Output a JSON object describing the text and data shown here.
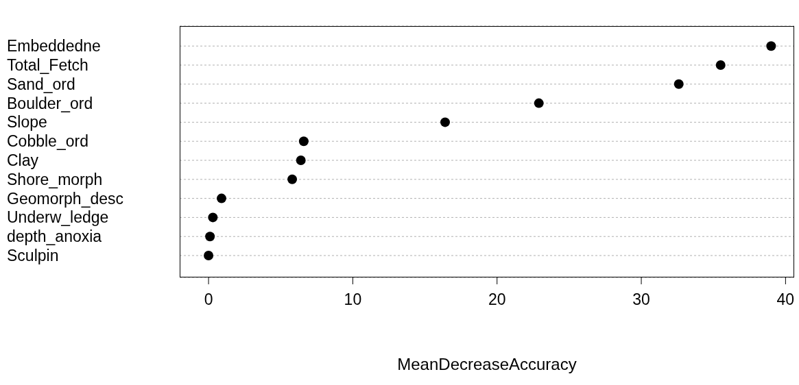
{
  "chart_data": {
    "type": "scatter",
    "orientation": "horizontal",
    "xlabel": "MeanDecreaseAccuracy",
    "categories": [
      "Embeddedne",
      "Total_Fetch",
      "Sand_ord",
      "Boulder_ord",
      "Slope",
      "Cobble_ord",
      "Clay",
      "Shore_morph",
      "Geomorph_desc",
      "Underw_ledge",
      "depth_anoxia",
      "Sculpin"
    ],
    "values": [
      39.0,
      35.5,
      32.6,
      22.9,
      16.4,
      6.6,
      6.4,
      5.8,
      0.9,
      0.3,
      0.1,
      0.0
    ],
    "color": "#000000",
    "xlim": [
      -2,
      40.6
    ],
    "xticks": [
      0,
      10,
      20,
      30,
      40
    ],
    "grid": "y",
    "marker": "circle"
  }
}
